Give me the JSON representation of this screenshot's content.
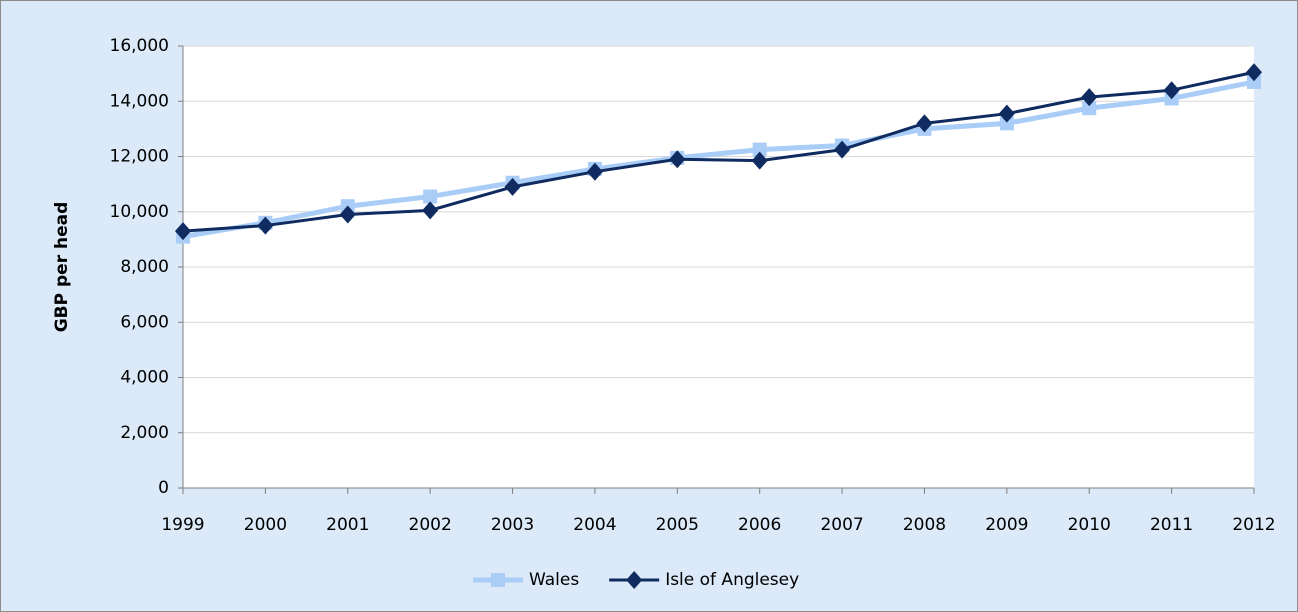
{
  "chart_data": {
    "type": "line",
    "y_label": "GBP per head",
    "categories": [
      "1999",
      "2000",
      "2001",
      "2002",
      "2003",
      "2004",
      "2005",
      "2006",
      "2007",
      "2008",
      "2009",
      "2010",
      "2011",
      "2012"
    ],
    "series": [
      {
        "name": "Wales",
        "color": "#a9cdf6",
        "marker": "square",
        "values": [
          9100,
          9600,
          10200,
          10550,
          11050,
          11550,
          11950,
          12250,
          12400,
          13000,
          13200,
          13750,
          14100,
          14700
        ]
      },
      {
        "name": "Isle of Anglesey",
        "color": "#0f2b5f",
        "marker": "diamond",
        "values": [
          9300,
          9500,
          9900,
          10050,
          10900,
          11450,
          11900,
          11850,
          12250,
          13200,
          13550,
          14150,
          14400,
          15050
        ]
      }
    ],
    "ylim": [
      0,
      16000
    ],
    "yticks": [
      0,
      {
        "value": 2000,
        "label": "2,000"
      },
      {
        "value": 4000,
        "label": "4,000"
      },
      {
        "value": 6000,
        "label": "6,000"
      },
      {
        "value": 8000,
        "label": "8,000"
      },
      {
        "value": 10000,
        "label": "10,000"
      },
      {
        "value": 12000,
        "label": "12,000"
      },
      {
        "value": 14000,
        "label": "14,000"
      },
      {
        "value": 16000,
        "label": "16,000"
      }
    ],
    "grid": true,
    "legend": "bottom"
  }
}
